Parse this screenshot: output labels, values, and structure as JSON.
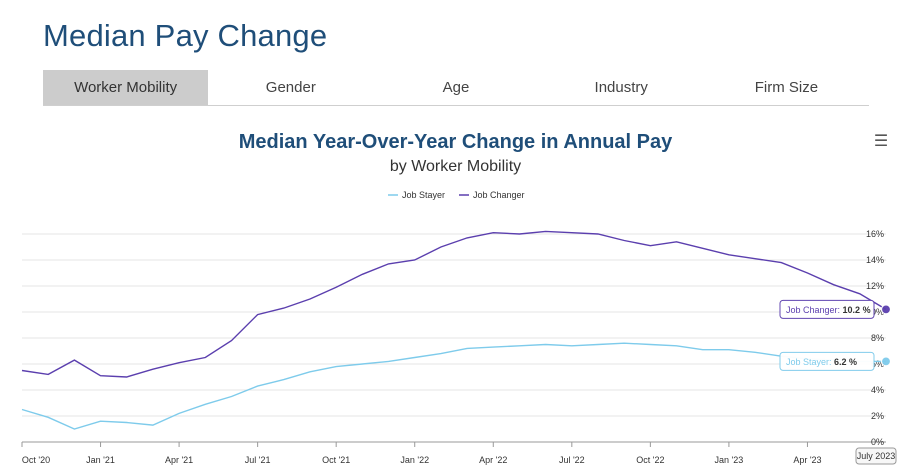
{
  "page": {
    "title": "Median Pay Change",
    "tabs": [
      {
        "label": "Worker Mobility",
        "active": true
      },
      {
        "label": "Gender",
        "active": false
      },
      {
        "label": "Age",
        "active": false
      },
      {
        "label": "Industry",
        "active": false
      },
      {
        "label": "Firm Size",
        "active": false
      }
    ],
    "menu_icon": "hamburger-menu-icon"
  },
  "chart_data": {
    "type": "line",
    "title": "Median Year-Over-Year Change in Annual Pay",
    "subtitle": "by Worker Mobility",
    "x": [
      "2020-10",
      "2020-11",
      "2020-12",
      "2021-01",
      "2021-02",
      "2021-03",
      "2021-04",
      "2021-05",
      "2021-06",
      "2021-07",
      "2021-08",
      "2021-09",
      "2021-10",
      "2021-11",
      "2021-12",
      "2022-01",
      "2022-02",
      "2022-03",
      "2022-04",
      "2022-05",
      "2022-06",
      "2022-07",
      "2022-08",
      "2022-09",
      "2022-10",
      "2022-11",
      "2022-12",
      "2023-01",
      "2023-02",
      "2023-03",
      "2023-04",
      "2023-05",
      "2023-06",
      "2023-07"
    ],
    "x_tick_labels": [
      "Oct '20",
      "Jan '21",
      "Apr '21",
      "Jul '21",
      "Oct '21",
      "Jan '22",
      "Apr '22",
      "Jul '22",
      "Oct '22",
      "Jan '23",
      "Apr '23"
    ],
    "x_hover_label": "July 2023",
    "y_ticks": [
      "0%",
      "2%",
      "4%",
      "6%",
      "8%",
      "10%",
      "12%",
      "14%",
      "16%"
    ],
    "ylim": [
      0,
      16
    ],
    "grid": true,
    "legend_position": "top-center",
    "series": [
      {
        "name": "Job Stayer",
        "color": "#7ecbeb",
        "values": [
          2.5,
          1.9,
          1.0,
          1.6,
          1.5,
          1.3,
          2.2,
          2.9,
          3.5,
          4.3,
          4.8,
          5.4,
          5.8,
          6.0,
          6.2,
          6.5,
          6.8,
          7.2,
          7.3,
          7.4,
          7.5,
          7.4,
          7.5,
          7.6,
          7.5,
          7.4,
          7.1,
          7.1,
          6.9,
          6.6,
          6.4,
          6.3,
          6.2,
          6.2
        ],
        "tooltip": {
          "name": "Job Stayer",
          "value": "6.2 %"
        }
      },
      {
        "name": "Job Changer",
        "color": "#5b3fae",
        "values": [
          5.5,
          5.2,
          6.3,
          5.1,
          5.0,
          5.6,
          6.1,
          6.5,
          7.8,
          9.8,
          10.3,
          11.0,
          11.9,
          12.9,
          13.7,
          14.0,
          15.0,
          15.7,
          16.1,
          16.0,
          16.2,
          16.1,
          16.0,
          15.5,
          15.1,
          15.4,
          14.9,
          14.4,
          14.1,
          13.8,
          13.0,
          12.1,
          11.4,
          10.2
        ],
        "tooltip": {
          "name": "Job Changer",
          "value": "10.2 %"
        }
      }
    ]
  }
}
